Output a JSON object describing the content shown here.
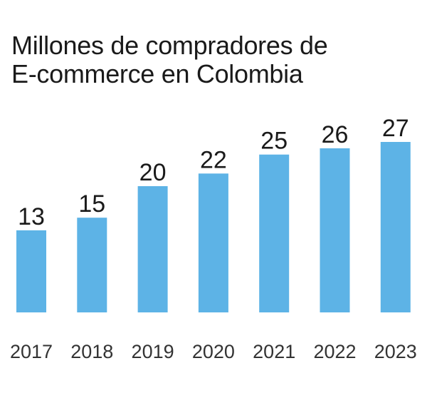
{
  "chart_data": {
    "type": "bar",
    "title": "Millones de compradores de\nE-commerce en Colombia",
    "categories": [
      "2017",
      "2018",
      "2019",
      "2020",
      "2021",
      "2022",
      "2023"
    ],
    "values": [
      13,
      15,
      20,
      22,
      25,
      26,
      27
    ],
    "data_labels": [
      "13",
      "15",
      "20",
      "22",
      "25",
      "26",
      "27"
    ],
    "xlabel": "",
    "ylabel": "",
    "ylim": [
      0,
      27
    ],
    "grid": false,
    "legend": "none",
    "bar_color": "#5db3e6"
  }
}
